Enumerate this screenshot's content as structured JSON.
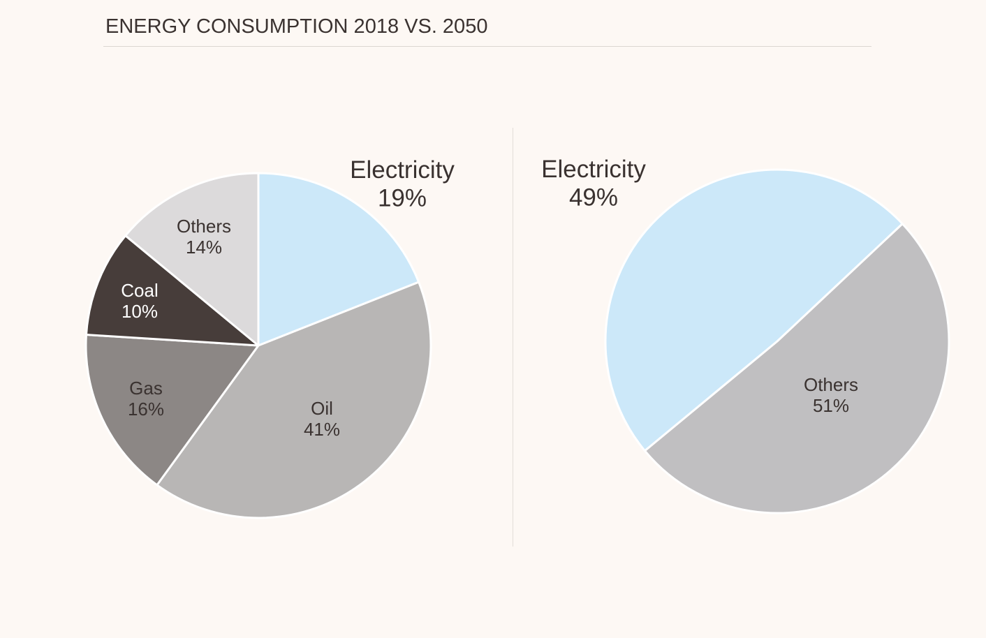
{
  "title": "ENERGY CONSUMPTION 2018 VS. 2050",
  "chart_data": [
    {
      "type": "pie",
      "year": "2018",
      "slices": [
        {
          "label": "Electricity",
          "value": 19,
          "text": "19%",
          "color": "#cce8f9"
        },
        {
          "label": "Oil",
          "value": 41,
          "text": "41%",
          "color": "#b8b6b5"
        },
        {
          "label": "Gas",
          "value": 16,
          "text": "16%",
          "color": "#8c8785"
        },
        {
          "label": "Coal",
          "value": 10,
          "text": "10%",
          "color": "#473d3a"
        },
        {
          "label": "Others",
          "value": 14,
          "text": "14%",
          "color": "#dcdadb"
        }
      ]
    },
    {
      "type": "pie",
      "year": "2050",
      "slices": [
        {
          "label": "Electricity",
          "value": 49,
          "text": "49%",
          "color": "#cce8f9"
        },
        {
          "label": "Others",
          "value": 51,
          "text": "51%",
          "color": "#c0bfc1"
        }
      ]
    }
  ]
}
